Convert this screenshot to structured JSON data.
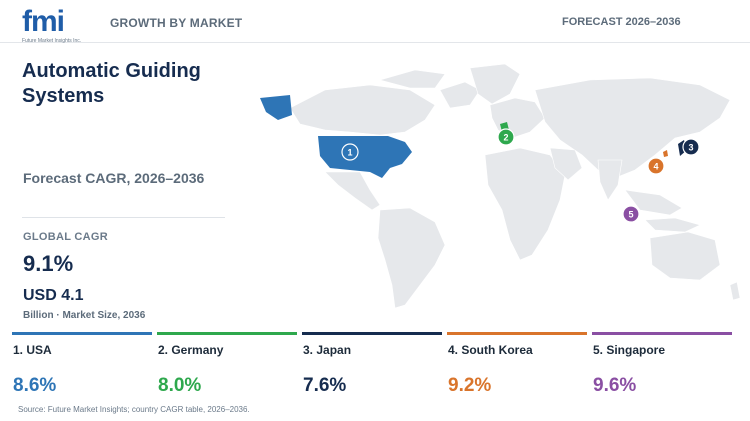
{
  "header": {
    "logo_text": "fmi",
    "logo_subtext": "Future Market Insights Inc.",
    "left_label": "GROWTH BY MARKET",
    "right_label": "FORECAST 2026–2036"
  },
  "summary": {
    "title": "Automatic Guiding Systems",
    "subtitle": "Forecast CAGR, 2026–2036",
    "global_cagr_label": "GLOBAL CAGR",
    "global_cagr_value": "9.1%",
    "market_size_value": "USD 4.1",
    "market_size_note": "Billion · Market Size, 2036"
  },
  "colors": {
    "usa": "#2e75b6",
    "germany": "#2ea84d",
    "japan": "#162c4f",
    "south_korea": "#d9742b",
    "singapore": "#8a4fa3"
  },
  "markets": [
    {
      "rank": "1",
      "name": "1. USA",
      "cagr": "8.6%",
      "color": "#2e75b6"
    },
    {
      "rank": "2",
      "name": "2. Germany",
      "cagr": "8.0%",
      "color": "#2ea84d"
    },
    {
      "rank": "3",
      "name": "3. Japan",
      "cagr": "7.6%",
      "color": "#162c4f"
    },
    {
      "rank": "4",
      "name": "4. South Korea",
      "cagr": "9.2%",
      "color": "#d9742b"
    },
    {
      "rank": "5",
      "name": "5. Singapore",
      "cagr": "9.6%",
      "color": "#8a4fa3"
    }
  ],
  "source": "Source: Future Market Insights; country CAGR table, 2026–2036."
}
